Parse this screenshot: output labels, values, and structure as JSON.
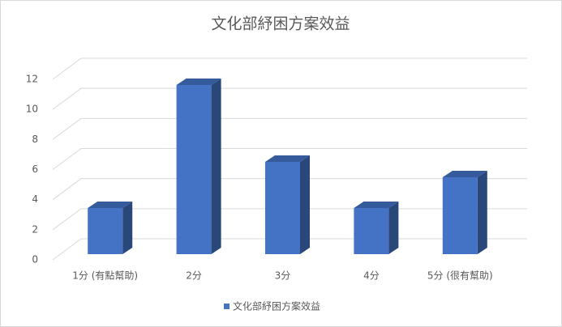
{
  "chart_data": {
    "type": "bar3d",
    "title": "文化部紓困方案效益",
    "categories": [
      "1分 (有點幫助)",
      "2分",
      "3分",
      "4分",
      "5分 (很有幫助)"
    ],
    "series": [
      {
        "name": "文化部紓困方案效益",
        "color": "#4472c4",
        "values": [
          3,
          11,
          6,
          3,
          5
        ]
      }
    ],
    "ylim": [
      0,
      12
    ],
    "yticks": [
      0,
      2,
      4,
      6,
      8,
      10,
      12
    ],
    "grid": true,
    "legend": "bottom"
  }
}
